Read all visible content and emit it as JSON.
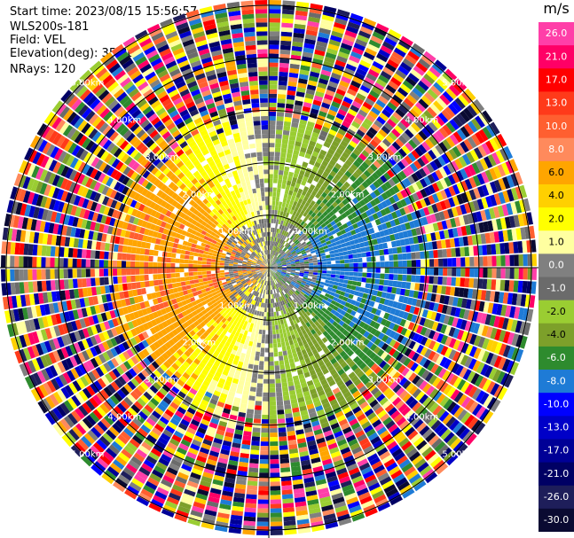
{
  "info": {
    "start_time": "Start time: 2023/08/15 15:56:57",
    "instrument": "WLS200s-181",
    "field": "Field: VEL",
    "elevation": "Elevation(deg): 35.30",
    "nrays": "NRays: 120"
  },
  "chart_data": {
    "type": "ppi",
    "title": "",
    "field": "VEL",
    "unit": "m/s",
    "elevation_deg": 35.3,
    "nrays": 120,
    "range_rings": [
      {
        "label": "1.00km"
      },
      {
        "label": "2.00km"
      },
      {
        "label": "3.00km"
      },
      {
        "label": "4.00km"
      },
      {
        "label": "5.00km"
      }
    ],
    "colorbar": {
      "ticks": [
        "26.0",
        "21.0",
        "17.0",
        "13.0",
        "10.0",
        "8.0",
        "6.0",
        "4.0",
        "2.0",
        "1.0",
        "0.0",
        "-1.0",
        "-2.0",
        "-4.0",
        "-6.0",
        "-8.0",
        "-10.0",
        "-13.0",
        "-17.0",
        "-21.0",
        "-26.0",
        "-30.0"
      ],
      "colors": [
        "#ff3fa8",
        "#ff0066",
        "#ff0000",
        "#ff3a1a",
        "#ff5f30",
        "#ff8a5c",
        "#ffa500",
        "#ffd000",
        "#ffff00",
        "#ffffa0",
        "#808080",
        "#6b6b6b",
        "#9acd32",
        "#7da02a",
        "#2e8b2e",
        "#1e7bd6",
        "#0000ff",
        "#0000c8",
        "#000096",
        "#000064",
        "#1e1e5a",
        "#0a0a32"
      ]
    }
  }
}
